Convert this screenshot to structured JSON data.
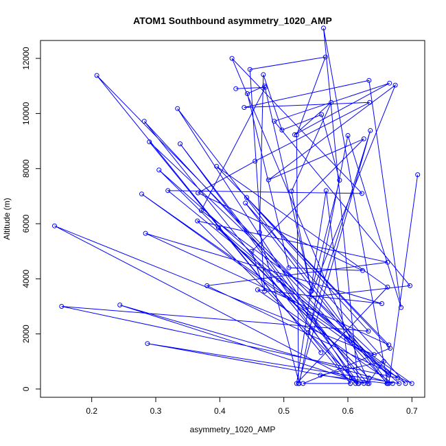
{
  "chart_data": {
    "type": "scatter",
    "title": "ATOM1 Southbound asymmetry_1020_AMP",
    "xlabel": "asymmetry_1020_AMP",
    "ylabel": "Altitude (m)",
    "xlim": [
      0.12,
      0.72
    ],
    "ylim": [
      -300,
      12650
    ],
    "xticks": [
      0.2,
      0.3,
      0.4,
      0.5,
      0.6,
      0.7
    ],
    "yticks": [
      0,
      2000,
      4000,
      6000,
      8000,
      10000,
      12000
    ],
    "xtick_labels": [
      "0.2",
      "0.3",
      "0.4",
      "0.5",
      "0.6",
      "0.7"
    ],
    "ytick_labels": [
      "0",
      "2000",
      "4000",
      "6000",
      "8000",
      "10000",
      "12000"
    ],
    "grid": false,
    "connected": true,
    "color": "#0000ff",
    "series": [
      {
        "x": [
          0.709,
          0.664,
          0.334,
          0.612,
          0.282,
          0.662,
          0.562,
          0.616,
          0.142,
          0.641,
          0.29,
          0.558,
          0.208,
          0.664,
          0.398,
          0.633,
          0.305,
          0.68,
          0.287,
          0.633,
          0.419,
          0.622,
          0.319,
          0.678,
          0.153,
          0.632,
          0.442,
          0.666,
          0.53,
          0.604,
          0.566,
          0.52,
          0.662,
          0.395,
          0.664,
          0.284,
          0.653,
          0.459,
          0.67,
          0.244,
          0.625,
          0.338,
          0.617,
          0.365,
          0.662,
          0.38,
          0.7,
          0.278,
          0.69,
          0.44,
          0.661,
          0.557,
          0.656,
          0.631,
          0.492,
          0.604,
          0.538,
          0.635,
          0.523,
          0.52,
          0.565,
          0.447,
          0.47,
          0.45,
          0.625,
          0.476,
          0.674,
          0.541,
          0.697,
          0.485,
          0.665,
          0.517,
          0.574,
          0.512,
          0.543,
          0.587,
          0.559,
          0.497,
          0.468,
          0.462,
          0.524,
          0.6,
          0.683,
          0.633,
          0.438,
          0.634,
          0.455,
          0.366,
          0.623,
          0.508,
          0.443,
          0.47,
          0.543,
          0.371,
          0.471,
          0.425
        ]
      }
    ],
    "y": [
      7780,
      200,
      10180,
      200,
      9720,
      200,
      13100,
      200,
      5920,
      1250,
      8970,
      1320,
      11380,
      500,
      5850,
      400,
      7950,
      200,
      1650,
      200,
      12000,
      7100,
      7200,
      400,
      3000,
      2100,
      6950,
      1480,
      200,
      200,
      7200,
      200,
      3700,
      8080,
      1600,
      5650,
      3100,
      3600,
      200,
      3050,
      200,
      8900,
      200,
      6100,
      4600,
      3750,
      200,
      7080,
      200,
      6750,
      200,
      500,
      1000,
      200,
      3950,
      200,
      2050,
      9380,
      200,
      9220,
      12050,
      11600,
      3550,
      5000,
      9080,
      7590,
      11030,
      3340,
      3750,
      9720,
      11100,
      9230,
      10400,
      7180,
      3550,
      7580,
      9960,
      9400,
      11410,
      5680,
      200,
      9200,
      2960,
      11200,
      10220,
      10400,
      8270,
      7120,
      4300,
      4400,
      10720,
      11000,
      3560,
      6480,
      10950,
      10900
    ]
  }
}
